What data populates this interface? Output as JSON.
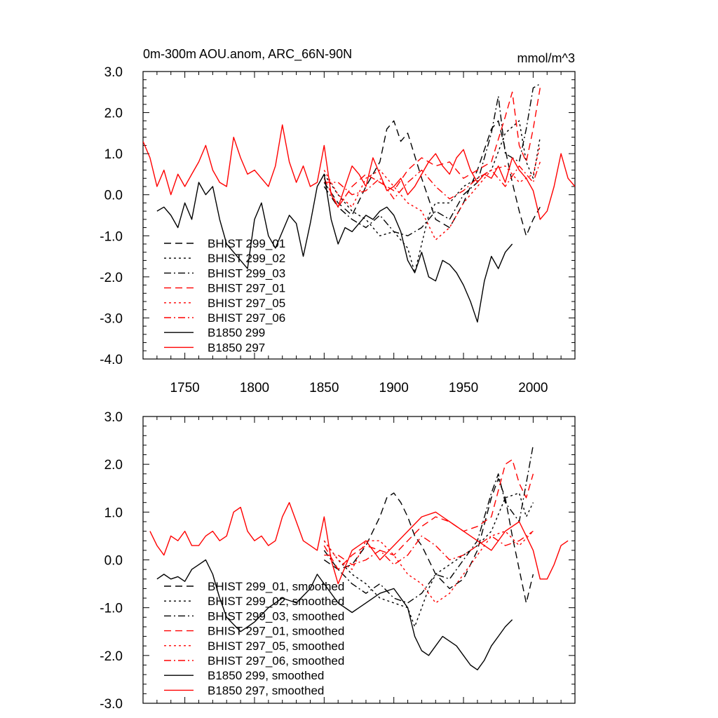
{
  "figure": {
    "title_left": "0m-300m AOU.anom, ARC_66N-90N",
    "title_right": "mmol/m^3"
  },
  "colors": {
    "black": "#000000",
    "red": "#ff0000"
  },
  "chart_data": [
    {
      "type": "line",
      "title": "0m-300m AOU.anom, ARC_66N-90N",
      "units": "mmol/m^3",
      "xlim": [
        1720,
        2030
      ],
      "ylim": [
        -4,
        3
      ],
      "yticks": [
        3,
        2,
        1,
        0,
        -1,
        -2,
        -3,
        -4
      ],
      "ytick_labels": [
        "3.0",
        "2.0",
        "1.0",
        "0.0",
        "-1.0",
        "-2.0",
        "-3.0",
        "-4.0"
      ],
      "xticks": [
        1750,
        1800,
        1850,
        1900,
        1950,
        2000
      ],
      "xtick_labels": [
        "1750",
        "1800",
        "1850",
        "1900",
        "1950",
        "2000"
      ],
      "legend_position": "bottom-left",
      "series": [
        {
          "name": "BHIST 299_01",
          "color": "#000000",
          "dash": "dashed",
          "x": [
            1850,
            1860,
            1870,
            1880,
            1890,
            1895,
            1900,
            1905,
            1910,
            1920,
            1930,
            1940,
            1950,
            1960,
            1970,
            1975,
            1980,
            1985,
            1990,
            1995,
            2000,
            2005
          ],
          "values": [
            0.3,
            -0.2,
            -0.5,
            0.2,
            0.8,
            1.6,
            1.8,
            1.3,
            1.5,
            0.4,
            -0.6,
            -0.8,
            -0.2,
            0.6,
            1.6,
            1.8,
            1.1,
            0.3,
            -0.4,
            -1.0,
            -0.6,
            -0.3
          ]
        },
        {
          "name": "BHIST 299_02",
          "color": "#000000",
          "dash": "dotted",
          "x": [
            1850,
            1860,
            1870,
            1880,
            1890,
            1900,
            1910,
            1915,
            1920,
            1925,
            1930,
            1940,
            1950,
            1960,
            1970,
            1980,
            1990,
            1995,
            2000,
            2005
          ],
          "values": [
            0.5,
            0.0,
            -0.4,
            -0.6,
            -1.0,
            -0.9,
            -1.3,
            -1.9,
            -1.2,
            -0.5,
            -0.2,
            -0.2,
            0.2,
            0.4,
            0.6,
            1.5,
            1.8,
            0.8,
            0.4,
            1.4
          ]
        },
        {
          "name": "BHIST 299_03",
          "color": "#000000",
          "dash": "dashdot",
          "x": [
            1850,
            1860,
            1870,
            1880,
            1890,
            1900,
            1910,
            1920,
            1930,
            1940,
            1950,
            1960,
            1970,
            1975,
            1980,
            1990,
            1995,
            2000,
            2005
          ],
          "values": [
            0.2,
            -0.3,
            -0.6,
            -0.8,
            -0.5,
            -0.9,
            -1.0,
            -0.8,
            -0.4,
            -0.6,
            0.0,
            0.3,
            1.5,
            2.4,
            1.0,
            0.8,
            1.6,
            2.6,
            2.7
          ]
        },
        {
          "name": "BHIST 297_01",
          "color": "#ff0000",
          "dash": "dashed",
          "x": [
            1850,
            1860,
            1870,
            1880,
            1890,
            1900,
            1910,
            1920,
            1930,
            1940,
            1950,
            1960,
            1970,
            1980,
            1985,
            1990,
            1995,
            2000,
            2005
          ],
          "values": [
            0.4,
            -0.3,
            0.2,
            0.5,
            0.3,
            0.1,
            0.6,
            0.9,
            0.7,
            0.8,
            0.4,
            0.6,
            0.8,
            1.9,
            2.5,
            1.2,
            0.8,
            1.6,
            2.6
          ]
        },
        {
          "name": "BHIST 297_05",
          "color": "#ff0000",
          "dash": "dotted",
          "x": [
            1850,
            1860,
            1870,
            1880,
            1890,
            1900,
            1910,
            1920,
            1930,
            1940,
            1950,
            1960,
            1970,
            1980,
            1990,
            2000,
            2005
          ],
          "values": [
            0.6,
            0.0,
            -0.3,
            0.4,
            0.6,
            0.2,
            -0.2,
            -0.4,
            -1.1,
            -0.8,
            -0.2,
            0.2,
            0.6,
            0.7,
            0.3,
            0.5,
            1.2
          ]
        },
        {
          "name": "BHIST 297_06",
          "color": "#ff0000",
          "dash": "dashdot",
          "x": [
            1850,
            1860,
            1870,
            1880,
            1890,
            1900,
            1910,
            1920,
            1930,
            1940,
            1950,
            1960,
            1970,
            1980,
            1990,
            2000,
            2005
          ],
          "values": [
            0.3,
            0.3,
            0.0,
            0.1,
            0.4,
            -0.1,
            0.3,
            0.6,
            0.2,
            -0.1,
            0.1,
            0.4,
            0.6,
            0.2,
            0.7,
            0.3,
            0.8
          ]
        },
        {
          "name": "B1850 299",
          "color": "#000000",
          "dash": "solid",
          "x": [
            1730,
            1735,
            1740,
            1745,
            1750,
            1755,
            1760,
            1765,
            1770,
            1775,
            1780,
            1785,
            1790,
            1795,
            1800,
            1805,
            1810,
            1815,
            1820,
            1825,
            1830,
            1835,
            1840,
            1845,
            1850,
            1855,
            1860,
            1865,
            1870,
            1875,
            1880,
            1885,
            1890,
            1895,
            1900,
            1905,
            1910,
            1915,
            1920,
            1925,
            1930,
            1935,
            1940,
            1945,
            1950,
            1955,
            1960,
            1965,
            1970,
            1975,
            1980,
            1985
          ],
          "values": [
            -0.4,
            -0.3,
            -0.5,
            -0.8,
            -0.2,
            -0.6,
            0.3,
            0.0,
            0.2,
            -0.6,
            -1.2,
            -1.4,
            -1.6,
            -1.8,
            -0.6,
            -0.2,
            -1.0,
            -1.3,
            -0.9,
            -0.5,
            -0.7,
            -1.5,
            -0.7,
            0.2,
            0.5,
            -0.6,
            -1.2,
            -0.8,
            -0.9,
            -0.7,
            -0.5,
            -0.6,
            -0.4,
            -0.3,
            -0.5,
            -0.9,
            -1.6,
            -1.9,
            -1.4,
            -2.0,
            -2.1,
            -1.6,
            -1.7,
            -1.9,
            -2.2,
            -2.6,
            -3.1,
            -2.1,
            -1.5,
            -1.8,
            -1.4,
            -1.2
          ]
        },
        {
          "name": "B1850 297",
          "color": "#ff0000",
          "dash": "solid",
          "x": [
            1720,
            1725,
            1730,
            1735,
            1740,
            1745,
            1750,
            1755,
            1760,
            1765,
            1770,
            1775,
            1780,
            1785,
            1790,
            1795,
            1800,
            1805,
            1810,
            1815,
            1820,
            1825,
            1830,
            1835,
            1840,
            1845,
            1850,
            1855,
            1860,
            1865,
            1870,
            1875,
            1880,
            1885,
            1890,
            1895,
            1900,
            1905,
            1910,
            1915,
            1920,
            1925,
            1930,
            1935,
            1940,
            1945,
            1950,
            1955,
            1960,
            1965,
            1970,
            1975,
            1980,
            1985,
            1990,
            1995,
            2000,
            2005,
            2010,
            2015,
            2020,
            2025,
            2030
          ],
          "values": [
            1.3,
            0.9,
            0.2,
            0.6,
            0.0,
            0.5,
            0.2,
            0.5,
            0.8,
            1.2,
            0.6,
            0.3,
            0.2,
            1.4,
            0.9,
            0.5,
            0.6,
            0.4,
            0.2,
            0.7,
            1.7,
            0.8,
            0.3,
            0.7,
            0.2,
            0.3,
            1.2,
            0.0,
            -0.3,
            0.2,
            0.7,
            0.5,
            0.2,
            0.9,
            0.5,
            0.1,
            0.2,
            0.4,
            0.0,
            0.2,
            0.5,
            0.8,
            1.0,
            0.7,
            0.5,
            0.9,
            1.1,
            0.6,
            0.3,
            0.5,
            0.4,
            0.7,
            0.3,
            0.9,
            0.6,
            0.4,
            0.1,
            -0.6,
            -0.4,
            0.2,
            1.0,
            0.4,
            0.2
          ]
        }
      ]
    },
    {
      "type": "line",
      "xlim": [
        1720,
        2030
      ],
      "ylim": [
        -3,
        3
      ],
      "yticks": [
        3,
        2,
        1,
        0,
        -1,
        -2,
        -3
      ],
      "ytick_labels": [
        "3.0",
        "2.0",
        "1.0",
        "0.0",
        "-1.0",
        "-2.0",
        "-3.0"
      ],
      "xticks": [
        1750,
        1800,
        1850,
        1900,
        1950,
        2000
      ],
      "legend_position": "bottom-left",
      "series": [
        {
          "name": "BHIST 299_01, smoothed",
          "color": "#000000",
          "dash": "dashed",
          "x": [
            1850,
            1860,
            1870,
            1880,
            1890,
            1895,
            1900,
            1905,
            1910,
            1915,
            1920,
            1925,
            1930,
            1940,
            1950,
            1960,
            1970,
            1975,
            1980,
            1985,
            1990,
            1995,
            2000
          ],
          "values": [
            0.0,
            -0.2,
            -0.1,
            0.3,
            0.9,
            1.3,
            1.4,
            1.2,
            0.9,
            0.5,
            0.3,
            0.0,
            -0.3,
            -0.6,
            -0.4,
            0.2,
            1.3,
            1.7,
            1.3,
            0.5,
            -0.2,
            -0.9,
            -0.3
          ]
        },
        {
          "name": "BHIST 299_02, smoothed",
          "color": "#000000",
          "dash": "dotted",
          "x": [
            1850,
            1860,
            1870,
            1880,
            1890,
            1900,
            1910,
            1915,
            1920,
            1925,
            1930,
            1940,
            1950,
            1960,
            1970,
            1980,
            1990,
            1995,
            2000
          ],
          "values": [
            0.4,
            0.0,
            -0.3,
            -0.5,
            -0.8,
            -0.9,
            -1.0,
            -1.4,
            -1.0,
            -0.6,
            -0.3,
            -0.1,
            0.1,
            0.3,
            0.6,
            1.3,
            1.4,
            0.9,
            1.2
          ]
        },
        {
          "name": "BHIST 299_03, smoothed",
          "color": "#000000",
          "dash": "dashdot",
          "x": [
            1850,
            1860,
            1870,
            1880,
            1890,
            1900,
            1910,
            1920,
            1930,
            1940,
            1950,
            1960,
            1970,
            1975,
            1980,
            1990,
            1995,
            2000
          ],
          "values": [
            0.2,
            -0.2,
            -0.5,
            -0.7,
            -0.5,
            -0.8,
            -0.9,
            -0.7,
            -0.3,
            -0.4,
            0.0,
            0.4,
            1.4,
            1.8,
            1.2,
            0.8,
            1.6,
            2.4
          ]
        },
        {
          "name": "BHIST 297_01, smoothed",
          "color": "#ff0000",
          "dash": "dashed",
          "x": [
            1850,
            1860,
            1870,
            1880,
            1890,
            1900,
            1910,
            1920,
            1930,
            1940,
            1950,
            1960,
            1970,
            1980,
            1985,
            1990,
            1995,
            2000
          ],
          "values": [
            0.3,
            -0.2,
            0.1,
            0.3,
            0.2,
            0.1,
            0.4,
            0.7,
            0.9,
            0.8,
            0.6,
            0.7,
            0.9,
            2.0,
            2.1,
            1.6,
            1.3,
            1.8
          ]
        },
        {
          "name": "BHIST 297_05, smoothed",
          "color": "#ff0000",
          "dash": "dotted",
          "x": [
            1850,
            1860,
            1870,
            1880,
            1890,
            1900,
            1910,
            1920,
            1930,
            1940,
            1950,
            1960,
            1970,
            1980,
            1990,
            2000
          ],
          "values": [
            0.4,
            0.0,
            -0.2,
            0.4,
            0.4,
            0.1,
            -0.3,
            -0.5,
            -0.9,
            -0.7,
            -0.3,
            0.1,
            0.5,
            0.6,
            0.3,
            0.6
          ]
        },
        {
          "name": "BHIST 297_06, smoothed",
          "color": "#ff0000",
          "dash": "dashdot",
          "x": [
            1850,
            1860,
            1870,
            1880,
            1890,
            1900,
            1910,
            1920,
            1930,
            1940,
            1950,
            1960,
            1970,
            1980,
            1990,
            2000
          ],
          "values": [
            0.1,
            0.1,
            -0.1,
            0.0,
            0.2,
            -0.1,
            0.1,
            0.5,
            0.3,
            0.0,
            0.1,
            0.3,
            0.5,
            0.3,
            0.4,
            0.6
          ]
        },
        {
          "name": "B1850 299, smoothed",
          "color": "#000000",
          "dash": "solid",
          "x": [
            1730,
            1735,
            1740,
            1745,
            1750,
            1755,
            1760,
            1765,
            1770,
            1775,
            1780,
            1790,
            1800,
            1810,
            1820,
            1830,
            1840,
            1845,
            1850,
            1860,
            1870,
            1880,
            1890,
            1900,
            1910,
            1915,
            1920,
            1925,
            1930,
            1935,
            1940,
            1945,
            1950,
            1955,
            1960,
            1965,
            1970,
            1975,
            1980,
            1985
          ],
          "values": [
            -0.4,
            -0.3,
            -0.4,
            -0.35,
            -0.45,
            -0.2,
            -0.1,
            0.0,
            -0.3,
            -0.8,
            -1.2,
            -1.5,
            -1.3,
            -1.0,
            -0.8,
            -0.9,
            -0.6,
            -0.3,
            -0.5,
            -0.9,
            -1.1,
            -0.9,
            -0.7,
            -0.6,
            -1.0,
            -1.6,
            -1.9,
            -2.0,
            -1.8,
            -1.6,
            -1.7,
            -1.8,
            -2.0,
            -2.2,
            -2.3,
            -2.1,
            -1.8,
            -1.6,
            -1.4,
            -1.25
          ]
        },
        {
          "name": "B1850 297, smoothed",
          "color": "#ff0000",
          "dash": "solid",
          "x": [
            1725,
            1730,
            1735,
            1740,
            1745,
            1750,
            1755,
            1760,
            1765,
            1770,
            1775,
            1780,
            1785,
            1790,
            1795,
            1800,
            1805,
            1810,
            1815,
            1820,
            1825,
            1830,
            1835,
            1840,
            1845,
            1850,
            1855,
            1860,
            1870,
            1880,
            1890,
            1900,
            1910,
            1920,
            1930,
            1940,
            1950,
            1960,
            1970,
            1980,
            1990,
            1995,
            2000,
            2005,
            2010,
            2015,
            2020,
            2025
          ],
          "values": [
            0.6,
            0.3,
            0.1,
            0.5,
            0.4,
            0.6,
            0.3,
            0.3,
            0.5,
            0.6,
            0.4,
            0.5,
            1.0,
            1.1,
            0.6,
            0.4,
            0.5,
            0.3,
            0.4,
            0.9,
            1.2,
            0.8,
            0.4,
            0.3,
            0.2,
            0.9,
            0.0,
            -0.5,
            0.2,
            0.4,
            0.0,
            0.3,
            0.6,
            0.9,
            1.0,
            0.8,
            0.6,
            0.4,
            0.2,
            0.6,
            0.8,
            0.5,
            0.2,
            -0.4,
            -0.4,
            -0.1,
            0.3,
            0.4
          ]
        }
      ]
    }
  ]
}
